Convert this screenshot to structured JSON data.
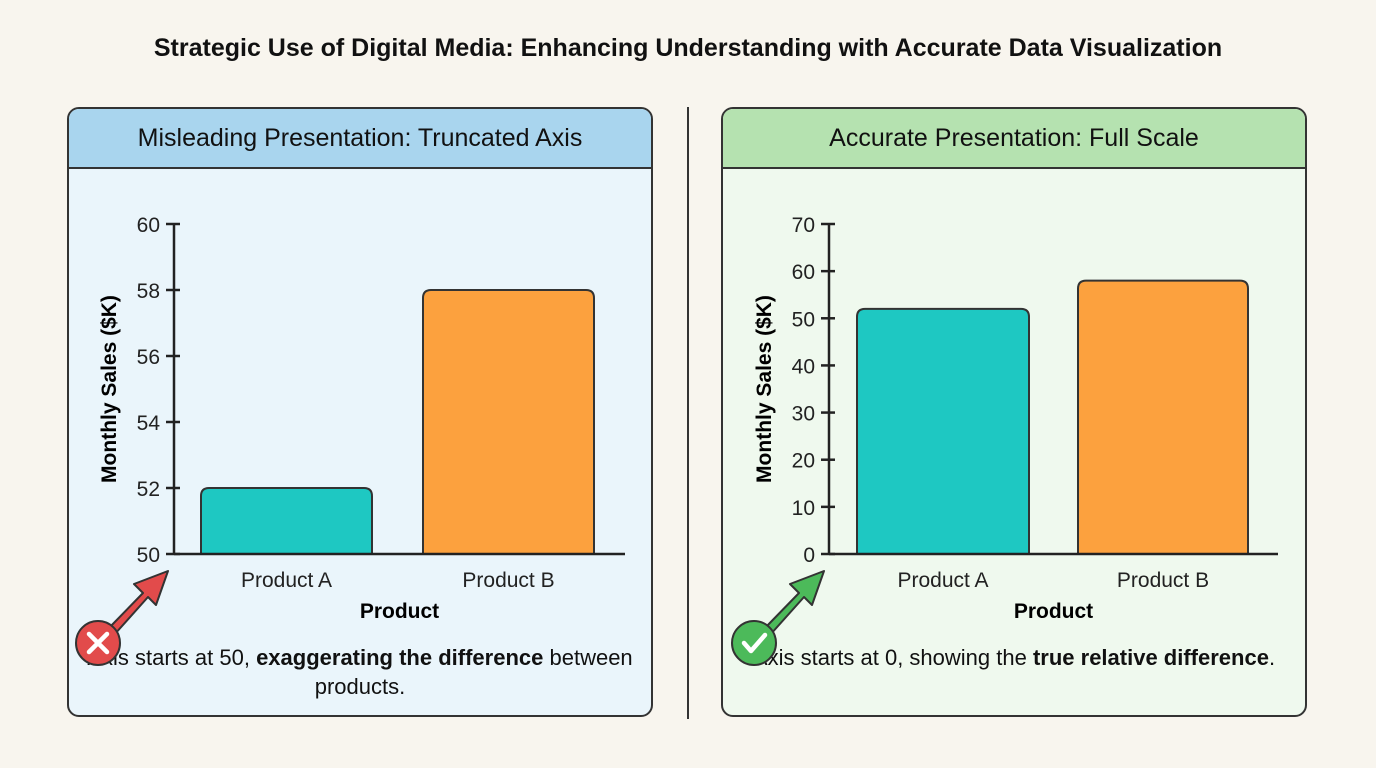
{
  "title": "Strategic Use of Digital Media: Enhancing Understanding with Accurate Data Visualization",
  "left_panel": {
    "header": "Misleading Presentation: Truncated Axis",
    "icon": "x-mark-icon",
    "caption_pre": "Axis starts at 50, ",
    "caption_bold": "exaggerating the difference",
    "caption_post": " between products.",
    "color": "#e24b4b"
  },
  "right_panel": {
    "header": "Accurate Presentation: Full Scale",
    "icon": "check-mark-icon",
    "caption_pre": "Axis starts at 0, showing the ",
    "caption_bold": "true relative difference",
    "caption_post": ".",
    "color": "#4cba5a"
  },
  "chart_data": [
    {
      "type": "bar",
      "categories": [
        "Product A",
        "Product B"
      ],
      "values": [
        52,
        58
      ],
      "colors": [
        "#1ec8c2",
        "#fca13e"
      ],
      "xlabel": "Product",
      "ylabel": "Monthly Sales ($K)",
      "ylim": [
        50,
        60
      ],
      "yticks": [
        50,
        52,
        54,
        56,
        58,
        60
      ],
      "grid": false
    },
    {
      "type": "bar",
      "categories": [
        "Product A",
        "Product B"
      ],
      "values": [
        52,
        58
      ],
      "colors": [
        "#1ec8c2",
        "#fca13e"
      ],
      "xlabel": "Product",
      "ylabel": "Monthly Sales ($K)",
      "ylim": [
        0,
        70
      ],
      "yticks": [
        0,
        10,
        20,
        30,
        40,
        50,
        60,
        70
      ],
      "grid": false
    }
  ]
}
